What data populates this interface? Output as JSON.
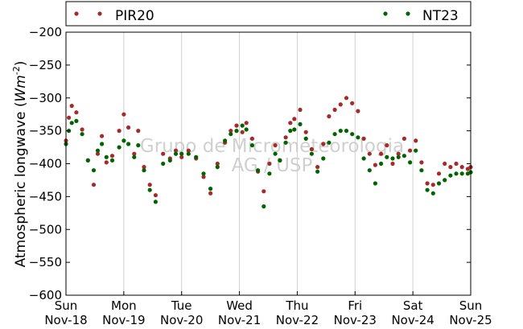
{
  "chart_data": {
    "type": "scatter",
    "ylabel": "Atmospheric longwave (Wm^-2)",
    "ylabel_text": "Atmospheric longwave (",
    "ylabel_unit": "Wm",
    "ylabel_exp": "-2",
    "ylabel_close": ")",
    "ylim": [
      -600,
      -200
    ],
    "y_ticks": [
      -200,
      -250,
      -300,
      -350,
      -400,
      -450,
      -500,
      -550,
      -600
    ],
    "x_ticks": [
      {
        "day": "Sun",
        "date": "Nov-18"
      },
      {
        "day": "Mon",
        "date": "Nov-19"
      },
      {
        "day": "Tue",
        "date": "Nov-20"
      },
      {
        "day": "Wed",
        "date": "Nov-21"
      },
      {
        "day": "Thu",
        "date": "Nov-22"
      },
      {
        "day": "Fri",
        "date": "Nov-23"
      },
      {
        "day": "Sat",
        "date": "Nov-24"
      },
      {
        "day": "Sun",
        "date": "Nov-25"
      }
    ],
    "grid": "vertical",
    "legend_position": "top",
    "watermark": [
      "Grupo de Micrometeorologia",
      "AG / USP"
    ],
    "series": [
      {
        "name": "PIR20",
        "color": "#a52a2a",
        "points": [
          [
            0.0,
            -365
          ],
          [
            0.05,
            -330
          ],
          [
            0.1,
            -312
          ],
          [
            0.18,
            -322
          ],
          [
            0.28,
            -348
          ],
          [
            0.38,
            -395
          ],
          [
            0.48,
            -432
          ],
          [
            0.55,
            -385
          ],
          [
            0.62,
            -358
          ],
          [
            0.7,
            -398
          ],
          [
            0.8,
            -388
          ],
          [
            0.92,
            -350
          ],
          [
            1.0,
            -325
          ],
          [
            1.08,
            -345
          ],
          [
            1.18,
            -385
          ],
          [
            1.25,
            -350
          ],
          [
            1.35,
            -405
          ],
          [
            1.45,
            -432
          ],
          [
            1.55,
            -448
          ],
          [
            1.68,
            -385
          ],
          [
            1.8,
            -392
          ],
          [
            1.9,
            -380
          ],
          [
            2.0,
            -390
          ],
          [
            2.12,
            -380
          ],
          [
            2.25,
            -392
          ],
          [
            2.38,
            -420
          ],
          [
            2.5,
            -445
          ],
          [
            2.62,
            -400
          ],
          [
            2.75,
            -368
          ],
          [
            2.85,
            -350
          ],
          [
            2.95,
            -342
          ],
          [
            3.05,
            -352
          ],
          [
            3.12,
            -338
          ],
          [
            3.22,
            -362
          ],
          [
            3.32,
            -412
          ],
          [
            3.42,
            -442
          ],
          [
            3.52,
            -400
          ],
          [
            3.62,
            -372
          ],
          [
            3.7,
            -395
          ],
          [
            3.8,
            -360
          ],
          [
            3.88,
            -338
          ],
          [
            3.95,
            -332
          ],
          [
            4.05,
            -318
          ],
          [
            4.15,
            -352
          ],
          [
            4.25,
            -378
          ],
          [
            4.35,
            -405
          ],
          [
            4.45,
            -370
          ],
          [
            4.55,
            -328
          ],
          [
            4.65,
            -318
          ],
          [
            4.75,
            -310
          ],
          [
            4.85,
            -300
          ],
          [
            4.95,
            -308
          ],
          [
            5.05,
            -320
          ],
          [
            5.15,
            -362
          ],
          [
            5.25,
            -385
          ],
          [
            5.35,
            -402
          ],
          [
            5.45,
            -385
          ],
          [
            5.55,
            -372
          ],
          [
            5.65,
            -400
          ],
          [
            5.75,
            -385
          ],
          [
            5.85,
            -362
          ],
          [
            5.95,
            -380
          ],
          [
            6.05,
            -365
          ],
          [
            6.15,
            -398
          ],
          [
            6.25,
            -430
          ],
          [
            6.35,
            -432
          ],
          [
            6.45,
            -415
          ],
          [
            6.55,
            -400
          ],
          [
            6.65,
            -405
          ],
          [
            6.75,
            -400
          ],
          [
            6.85,
            -405
          ],
          [
            6.95,
            -408
          ],
          [
            7.0,
            -405
          ]
        ]
      },
      {
        "name": "NT23",
        "color": "#006400",
        "points": [
          [
            0.0,
            -370
          ],
          [
            0.05,
            -350
          ],
          [
            0.1,
            -338
          ],
          [
            0.18,
            -335
          ],
          [
            0.28,
            -355
          ],
          [
            0.38,
            -395
          ],
          [
            0.48,
            -410
          ],
          [
            0.55,
            -380
          ],
          [
            0.62,
            -370
          ],
          [
            0.7,
            -390
          ],
          [
            0.8,
            -395
          ],
          [
            0.92,
            -375
          ],
          [
            1.0,
            -365
          ],
          [
            1.08,
            -370
          ],
          [
            1.18,
            -390
          ],
          [
            1.25,
            -372
          ],
          [
            1.35,
            -410
          ],
          [
            1.45,
            -440
          ],
          [
            1.55,
            -458
          ],
          [
            1.68,
            -400
          ],
          [
            1.8,
            -395
          ],
          [
            1.9,
            -385
          ],
          [
            2.0,
            -385
          ],
          [
            2.12,
            -385
          ],
          [
            2.25,
            -390
          ],
          [
            2.38,
            -415
          ],
          [
            2.5,
            -438
          ],
          [
            2.62,
            -405
          ],
          [
            2.75,
            -365
          ],
          [
            2.85,
            -355
          ],
          [
            2.95,
            -350
          ],
          [
            3.05,
            -342
          ],
          [
            3.12,
            -348
          ],
          [
            3.22,
            -372
          ],
          [
            3.32,
            -410
          ],
          [
            3.42,
            -465
          ],
          [
            3.52,
            -415
          ],
          [
            3.62,
            -385
          ],
          [
            3.7,
            -395
          ],
          [
            3.8,
            -368
          ],
          [
            3.88,
            -350
          ],
          [
            3.95,
            -348
          ],
          [
            4.05,
            -340
          ],
          [
            4.15,
            -362
          ],
          [
            4.25,
            -385
          ],
          [
            4.35,
            -412
          ],
          [
            4.45,
            -392
          ],
          [
            4.55,
            -368
          ],
          [
            4.65,
            -355
          ],
          [
            4.75,
            -350
          ],
          [
            4.85,
            -350
          ],
          [
            4.95,
            -355
          ],
          [
            5.05,
            -360
          ],
          [
            5.15,
            -392
          ],
          [
            5.25,
            -410
          ],
          [
            5.35,
            -430
          ],
          [
            5.45,
            -400
          ],
          [
            5.55,
            -390
          ],
          [
            5.65,
            -392
          ],
          [
            5.75,
            -390
          ],
          [
            5.85,
            -388
          ],
          [
            5.95,
            -398
          ],
          [
            6.05,
            -380
          ],
          [
            6.15,
            -410
          ],
          [
            6.25,
            -440
          ],
          [
            6.35,
            -445
          ],
          [
            6.45,
            -430
          ],
          [
            6.55,
            -425
          ],
          [
            6.65,
            -418
          ],
          [
            6.75,
            -415
          ],
          [
            6.85,
            -415
          ],
          [
            6.95,
            -415
          ],
          [
            7.0,
            -413
          ]
        ]
      }
    ]
  }
}
